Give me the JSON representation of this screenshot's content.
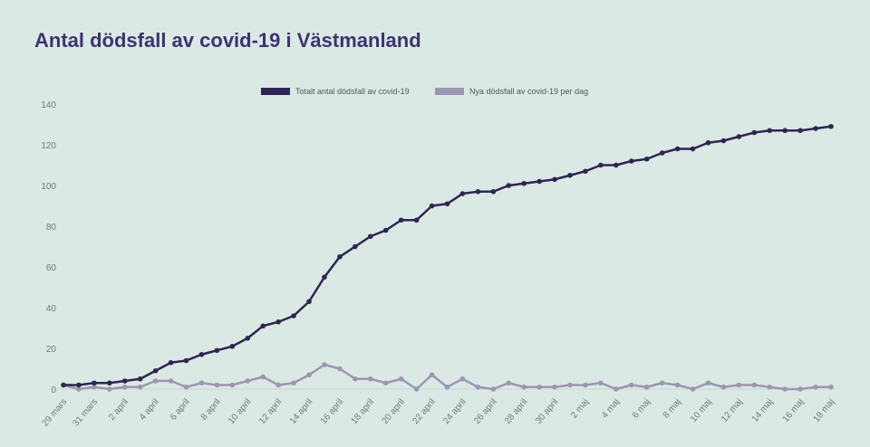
{
  "chart_data": {
    "type": "line",
    "title": "Antal dödsfall av covid-19 i Västmanland",
    "xlabel": "",
    "ylabel": "",
    "ylim": [
      0,
      140
    ],
    "yticks": [
      0,
      20,
      40,
      60,
      80,
      100,
      120,
      140
    ],
    "grid": false,
    "legend_placement": "top-center",
    "x": [
      "29 mars",
      "30 mars",
      "31 mars",
      "1 april",
      "2 april",
      "3 april",
      "4 april",
      "5 april",
      "6 april",
      "7 april",
      "8 april",
      "9 april",
      "10 april",
      "11 april",
      "12 april",
      "13 april",
      "14 april",
      "15 april",
      "16 april",
      "17 april",
      "18 april",
      "19 april",
      "20 april",
      "21 april",
      "22 april",
      "23 april",
      "24 april",
      "25 april",
      "26 april",
      "27 april",
      "28 april",
      "29 april",
      "30 april",
      "1 maj",
      "2 maj",
      "3 maj",
      "4 maj",
      "5 maj",
      "6 maj",
      "7 maj",
      "8 maj",
      "9 maj",
      "10 maj",
      "11 maj",
      "12 maj",
      "13 maj",
      "14 maj",
      "15 maj",
      "16 maj",
      "17 maj",
      "18 maj"
    ],
    "xtick_labels": [
      "29 mars",
      "31 mars",
      "2 april",
      "4 april",
      "6 april",
      "8 april",
      "10 april",
      "12 april",
      "14 april",
      "16 april",
      "18 april",
      "20 april",
      "22 april",
      "24 april",
      "26 april",
      "28 april",
      "30 april",
      "2 maj",
      "4 maj",
      "6 maj",
      "8 maj",
      "10 maj",
      "12 maj",
      "14 maj",
      "16 maj",
      "18 maj"
    ],
    "series": [
      {
        "name": "Totalt antal dödsfall av covid-19",
        "color": "#2e2552",
        "values": [
          2,
          2,
          3,
          3,
          4,
          5,
          9,
          13,
          14,
          17,
          19,
          21,
          25,
          31,
          33,
          36,
          43,
          55,
          65,
          70,
          75,
          78,
          83,
          83,
          90,
          91,
          96,
          97,
          97,
          100,
          101,
          102,
          103,
          105,
          107,
          110,
          110,
          112,
          113,
          116,
          118,
          118,
          121,
          122,
          124,
          126,
          127,
          127,
          127,
          128,
          129
        ]
      },
      {
        "name": "Nya dödsfall av covid-19 per dag",
        "color": "#9d96b0",
        "values": [
          2,
          0,
          1,
          0,
          1,
          1,
          4,
          4,
          1,
          3,
          2,
          2,
          4,
          6,
          2,
          3,
          7,
          12,
          10,
          5,
          5,
          3,
          5,
          0,
          7,
          1,
          5,
          1,
          0,
          3,
          1,
          1,
          1,
          2,
          2,
          3,
          0,
          2,
          1,
          3,
          2,
          0,
          3,
          1,
          2,
          2,
          1,
          0,
          0,
          1,
          1
        ]
      }
    ]
  }
}
